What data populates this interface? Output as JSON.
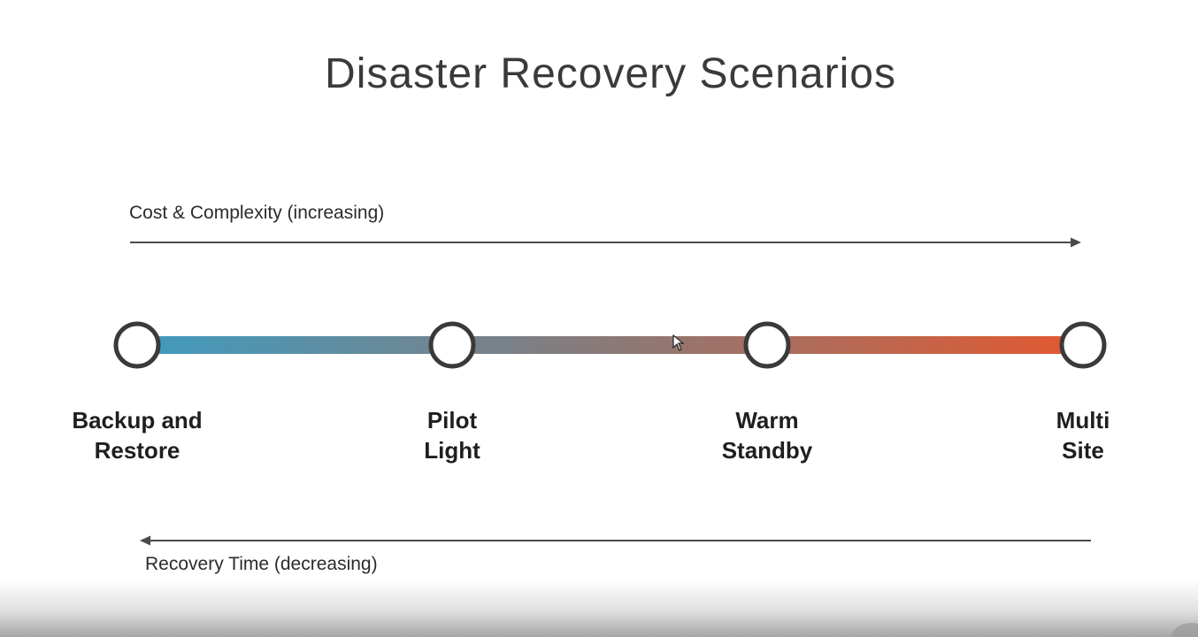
{
  "title": "Disaster Recovery Scenarios",
  "axis_top": {
    "label": "Cost & Complexity (increasing)"
  },
  "axis_bottom": {
    "label": "Recovery Time (decreasing)"
  },
  "stages": [
    {
      "line1": "Backup and",
      "line2": "Restore"
    },
    {
      "line1": "Pilot",
      "line2": "Light"
    },
    {
      "line1": "Warm",
      "line2": "Standby"
    },
    {
      "line1": "Multi",
      "line2": "Site"
    }
  ],
  "colors": {
    "gradient_start": "#3f9bc0",
    "gradient_mid": "#8a7a78",
    "gradient_end": "#e3582f",
    "node_stroke": "#3a3a3a",
    "arrow": "#4a4a4a"
  }
}
